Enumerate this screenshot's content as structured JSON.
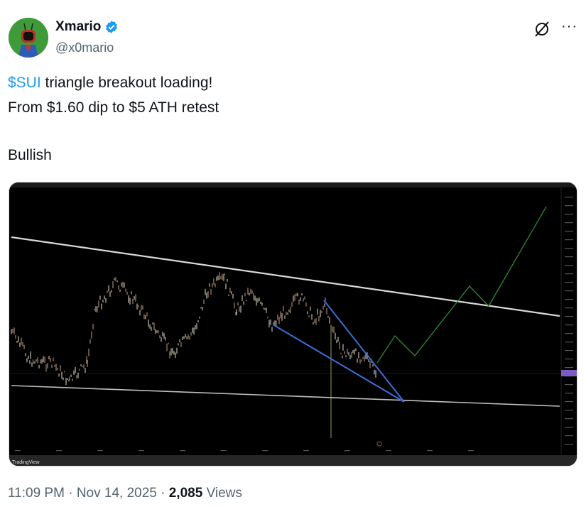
{
  "author": {
    "display_name": "Xmario",
    "handle": "@x0mario",
    "verified": true,
    "verified_color": "#1d9bf0"
  },
  "header_icons": [
    "grok-icon",
    "more-options-icon"
  ],
  "more_label": "···",
  "tweet": {
    "cashtag": "$SUI",
    "line1_rest": " triangle breakout loading!",
    "line2": "From $1.60 dip to $5 ATH retest",
    "line3": "Bullish"
  },
  "media": {
    "watermark": "TradingView",
    "colors": {
      "trendline": "#d9d9d9",
      "wedge": "#3d6fd6",
      "projection": "#2f8a2f",
      "price": "#c9a27a"
    }
  },
  "footer": {
    "time": "11:09 PM",
    "date": "Nov 14, 2025",
    "separator": "·",
    "views_count": "2,085",
    "views_label": "Views"
  }
}
